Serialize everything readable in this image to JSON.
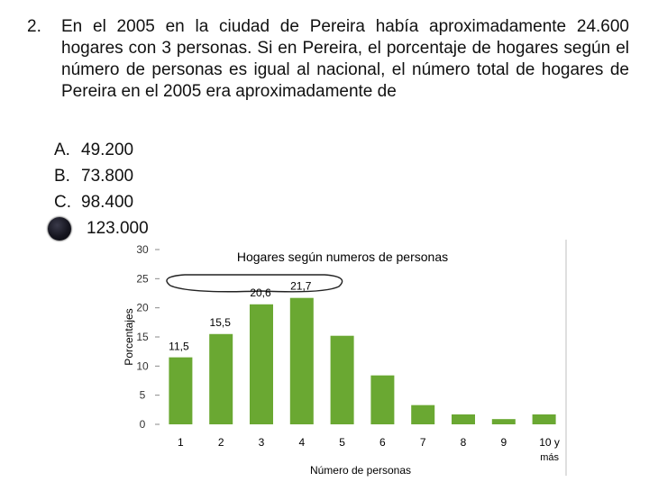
{
  "question": {
    "number": "2.",
    "text": "En el 2005 en la ciudad de Pereira había aproximadamente 24.600 hogares con 3 personas. Si en Pereira, el porcentaje de hogares según el número de personas es igual al nacional, el número total de hogares de Pereira en el 2005 era aproximadamente de"
  },
  "options": [
    {
      "letter": "A.",
      "value": "49.200"
    },
    {
      "letter": "B.",
      "value": "73.800"
    },
    {
      "letter": "C.",
      "value": "98.400"
    },
    {
      "letter": "",
      "value": "123.000",
      "selected": true
    }
  ],
  "chart_data": {
    "type": "bar",
    "title": "Hogares según numeros de personas",
    "xlabel": "Número de personas",
    "ylabel": "Porcentajes",
    "categories": [
      "1",
      "2",
      "3",
      "4",
      "5",
      "6",
      "7",
      "8",
      "9",
      "10 y más"
    ],
    "values": [
      11.5,
      15.5,
      20.6,
      21.7,
      15.2,
      8.4,
      3.3,
      1.7,
      0.9,
      1.7
    ],
    "data_labels": [
      "11,5",
      "15,5",
      "20,6",
      "21,7",
      "",
      "",
      "",
      "",
      "",
      ""
    ],
    "yticks": [
      "0",
      "5",
      "10",
      "15",
      "20",
      "25",
      "30"
    ],
    "ylim": [
      0,
      30
    ],
    "bar_color": "#6aa832",
    "grid": false,
    "legend": "none"
  }
}
